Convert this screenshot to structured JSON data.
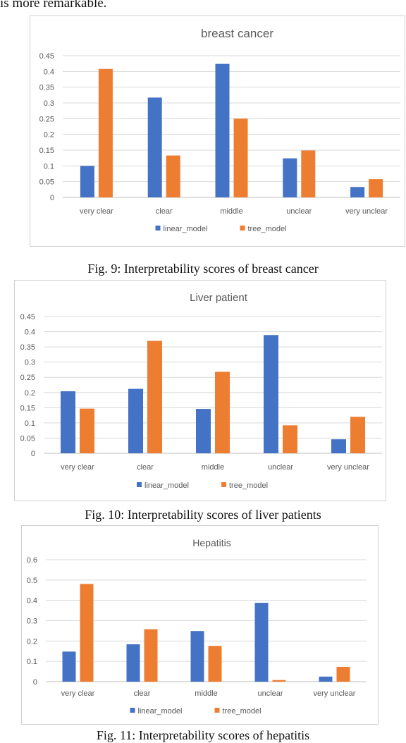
{
  "page": {
    "top_text": "is more remarkable."
  },
  "figures": [
    {
      "caption": "Fig. 9: Interpretability scores of breast cancer"
    },
    {
      "caption": "Fig. 10: Interpretability scores of liver patients"
    },
    {
      "caption": "Fig. 11: Interpretability scores of hepatitis"
    }
  ],
  "chart_data": [
    {
      "type": "bar",
      "title": "breast cancer",
      "categories": [
        "very clear",
        "clear",
        "middle",
        "unclear",
        "very unclear"
      ],
      "series": [
        {
          "name": "linear_model",
          "color": "#4472C4",
          "values": [
            0.1,
            0.317,
            0.424,
            0.124,
            0.033
          ]
        },
        {
          "name": "tree_model",
          "color": "#ED7D31",
          "values": [
            0.408,
            0.133,
            0.25,
            0.149,
            0.058
          ]
        }
      ],
      "yticks": [
        "0",
        "0.05",
        "0.1",
        "0.15",
        "0.2",
        "0.25",
        "0.3",
        "0.35",
        "0.4",
        "0.45"
      ],
      "ylim": [
        0,
        0.45
      ],
      "grid": true,
      "legend": "bottom"
    },
    {
      "type": "bar",
      "title": "Liver patient",
      "categories": [
        "very clear",
        "clear",
        "middle",
        "unclear",
        "very unclear"
      ],
      "series": [
        {
          "name": "linear_model",
          "color": "#4472C4",
          "values": [
            0.204,
            0.212,
            0.146,
            0.389,
            0.046
          ]
        },
        {
          "name": "tree_model",
          "color": "#ED7D31",
          "values": [
            0.147,
            0.37,
            0.268,
            0.092,
            0.12
          ]
        }
      ],
      "yticks": [
        "0",
        "0.05",
        "0.1",
        "0.15",
        "0.2",
        "0.25",
        "0.3",
        "0.35",
        "0.4",
        "0.45"
      ],
      "ylim": [
        0,
        0.45
      ],
      "grid": true,
      "legend": "bottom"
    },
    {
      "type": "bar",
      "title": "Hepatitis",
      "categories": [
        "very clear",
        "clear",
        "middle",
        "unclear",
        "very unclear"
      ],
      "series": [
        {
          "name": "linear_model",
          "color": "#4472C4",
          "values": [
            0.148,
            0.184,
            0.249,
            0.388,
            0.025
          ]
        },
        {
          "name": "tree_model",
          "color": "#ED7D31",
          "values": [
            0.481,
            0.258,
            0.176,
            0.008,
            0.073
          ]
        }
      ],
      "yticks": [
        "0",
        "0.1",
        "0.2",
        "0.3",
        "0.4",
        "0.5",
        "0.6"
      ],
      "ylim": [
        0,
        0.6
      ],
      "grid": true,
      "legend": "bottom"
    }
  ]
}
